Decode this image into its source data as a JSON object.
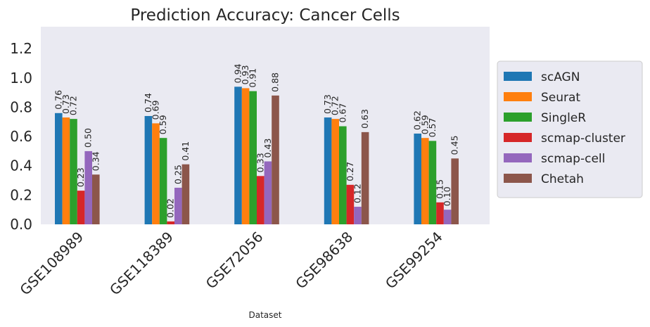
{
  "chart_data": {
    "type": "bar",
    "title": "Prediction Accuracy: Cancer Cells",
    "xlabel": "Dataset",
    "ylabel": "",
    "ylim": [
      0,
      1.35
    ],
    "yticks": [
      "0.0",
      "0.2",
      "0.4",
      "0.6",
      "0.8",
      "1.0",
      "1.2"
    ],
    "categories": [
      "GSE108989",
      "GSE118389",
      "GSE72056",
      "GSE98638",
      "GSE99254"
    ],
    "grid": false,
    "legend_position": "right",
    "series": [
      {
        "name": "scAGN",
        "color": "#1f77b4",
        "values": [
          0.76,
          0.74,
          0.94,
          0.73,
          0.62
        ],
        "labels": [
          "0.76",
          "0.74",
          "0.94",
          "0.73",
          "0.62"
        ]
      },
      {
        "name": "Seurat",
        "color": "#ff7f0e",
        "values": [
          0.73,
          0.69,
          0.93,
          0.72,
          0.59
        ],
        "labels": [
          "0.73",
          "0.69",
          "0.93",
          "0.72",
          "0.59"
        ]
      },
      {
        "name": "SingleR",
        "color": "#2ca02c",
        "values": [
          0.72,
          0.59,
          0.91,
          0.67,
          0.57
        ],
        "labels": [
          "0.72",
          "0.59",
          "0.91",
          "0.67",
          "0.57"
        ]
      },
      {
        "name": "scmap-cluster",
        "color": "#d62728",
        "values": [
          0.23,
          0.02,
          0.33,
          0.27,
          0.15
        ],
        "labels": [
          "0.23",
          "0.02",
          "0.33",
          "0.27",
          "0.15"
        ]
      },
      {
        "name": "scmap-cell",
        "color": "#9467bd",
        "values": [
          0.5,
          0.25,
          0.43,
          0.12,
          0.1
        ],
        "labels": [
          "0.50",
          "0.25",
          "0.43",
          "0.12",
          "0.10"
        ]
      },
      {
        "name": "Chetah",
        "color": "#8c564b",
        "values": [
          0.34,
          0.41,
          0.88,
          0.63,
          0.45
        ],
        "labels": [
          "0.34",
          "0.41",
          "0.88",
          "0.63",
          "0.45"
        ]
      }
    ]
  }
}
